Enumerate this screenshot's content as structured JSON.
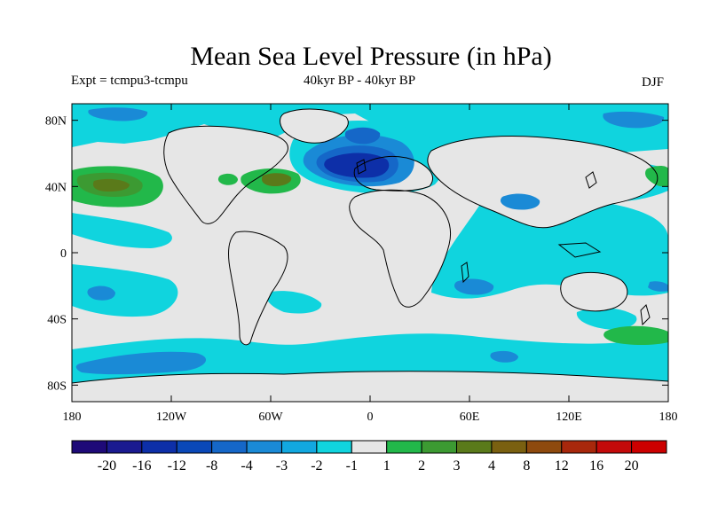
{
  "header": {
    "title": "Mean Sea Level Pressure (in hPa)",
    "left_subtitle": "Expt = tcmpu3-tcmpu",
    "center_subtitle": "40kyr BP - 40kyr BP",
    "right_subtitle": "DJF"
  },
  "map": {
    "lat_labels": [
      "80N",
      "40N",
      "0",
      "40S",
      "80S"
    ],
    "lon_labels": [
      "180",
      "120W",
      "60W",
      "0",
      "60E",
      "120E",
      "180"
    ],
    "lat_ticks": [
      80,
      40,
      0,
      -40,
      -80
    ],
    "lon_ticks": [
      -180,
      -120,
      -60,
      0,
      60,
      120,
      180
    ],
    "lat_range": [
      -90,
      90
    ],
    "lon_range": [
      -180,
      180
    ],
    "background_color": "#e6e6e6"
  },
  "colorbar": {
    "labels": [
      "-20",
      "-16",
      "-12",
      "-8",
      "-4",
      "-3",
      "-2",
      "-1",
      "1",
      "2",
      "3",
      "4",
      "8",
      "12",
      "16",
      "20"
    ],
    "colors": [
      "#1e0a78",
      "#1a1a90",
      "#0d2fa8",
      "#0a48b8",
      "#1567c8",
      "#1a8ad6",
      "#12a8e0",
      "#10d4de",
      "#e6e6e6",
      "#22b84a",
      "#3c9a32",
      "#5a7a1a",
      "#7a6010",
      "#8e4a0e",
      "#a8280c",
      "#c40a0a",
      "#cc0000"
    ]
  }
}
